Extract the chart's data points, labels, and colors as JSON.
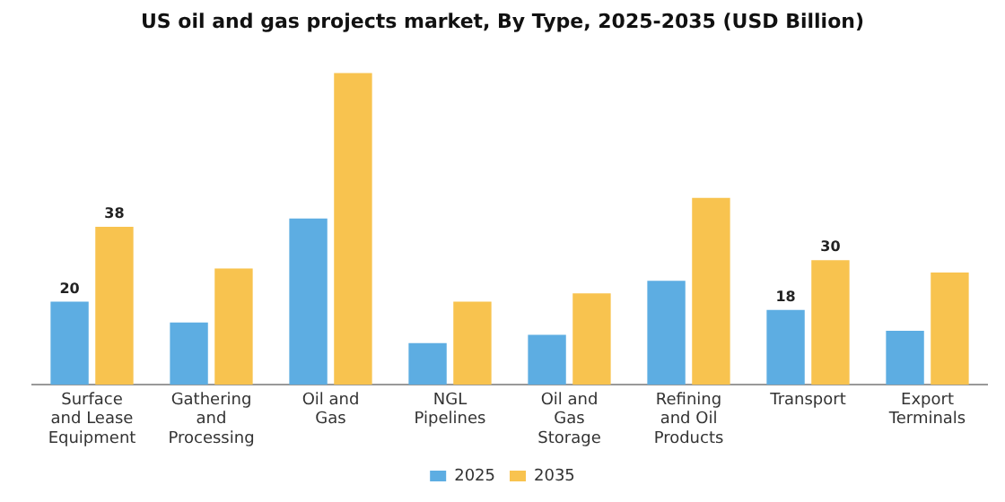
{
  "chart_data": {
    "type": "bar",
    "title": "US oil and gas projects market, By Type, 2025-2035 (USD Billion)",
    "categories": [
      "Surface and Lease Equipment",
      "Gathering and Processing",
      "Oil and Gas",
      "NGL Pipelines",
      "Oil and Gas Storage",
      "Refining and Oil Products",
      "Transport",
      "Export Terminals"
    ],
    "series": [
      {
        "name": "2025",
        "color": "#5dade2",
        "values": [
          20,
          15,
          40,
          10,
          12,
          25,
          18,
          13
        ],
        "value_labels": [
          "20",
          null,
          null,
          null,
          null,
          null,
          "18",
          null
        ]
      },
      {
        "name": "2035",
        "color": "#f8c34f",
        "values": [
          38,
          28,
          75,
          20,
          22,
          45,
          30,
          27
        ],
        "value_labels": [
          "38",
          null,
          null,
          null,
          null,
          null,
          "30",
          null
        ]
      }
    ],
    "tick_labels": "x",
    "grid": false,
    "legend": "bottom"
  }
}
